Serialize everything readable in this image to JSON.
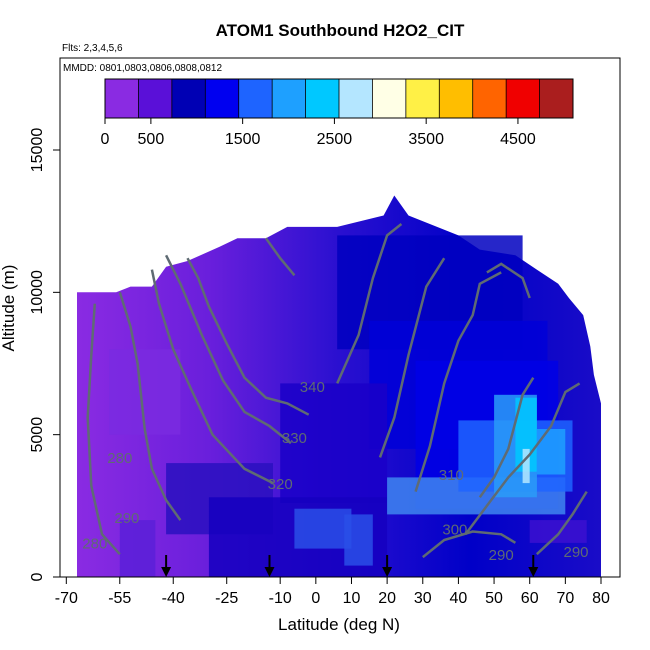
{
  "chart_data": {
    "type": "heatmap",
    "title": "ATOM1 Southbound H2O2_CIT",
    "subtitle_flights": "Flts: 2,3,4,5,6",
    "subtitle_dates": "MMDD: 0801,0803,0806,0808,0812",
    "xlabel": "Latitude (deg N)",
    "ylabel": "Altitude (m)",
    "xlim": [
      -70,
      80
    ],
    "ylim": [
      0,
      17500
    ],
    "x_ticks": [
      -70,
      -55,
      -40,
      -25,
      -10,
      0,
      10,
      20,
      30,
      40,
      50,
      60,
      70,
      80
    ],
    "y_ticks": [
      0,
      5000,
      10000,
      15000
    ],
    "colorbar": {
      "range": [
        0,
        5100
      ],
      "ticks": [
        0,
        500,
        1500,
        2500,
        3500,
        4500
      ],
      "colors": [
        "#8a2be2",
        "#5a10d8",
        "#0000b4",
        "#0000f0",
        "#1e64ff",
        "#1ea0ff",
        "#00c8ff",
        "#b4e6ff",
        "#ffffe6",
        "#fff046",
        "#ffbe00",
        "#ff6400",
        "#f00000",
        "#aa1e1e"
      ]
    },
    "contours": [
      {
        "label": "340",
        "x": -1,
        "y": 6500
      },
      {
        "label": "330",
        "x": -6,
        "y": 4700
      },
      {
        "label": "320",
        "x": -10,
        "y": 3100
      },
      {
        "label": "310",
        "x": 38,
        "y": 3400
      },
      {
        "label": "300",
        "x": 39,
        "y": 1500
      },
      {
        "label": "290",
        "x": -53,
        "y": 1900
      },
      {
        "label": "290",
        "x": 52,
        "y": 600
      },
      {
        "label": "290",
        "x": 73,
        "y": 700
      },
      {
        "label": "280",
        "x": -62,
        "y": 1000
      },
      {
        "label": "280",
        "x": -55,
        "y": 4000
      }
    ],
    "flight_markers_lat": [
      -42,
      -13,
      20,
      61
    ],
    "grid": false,
    "legend_position": "top"
  }
}
